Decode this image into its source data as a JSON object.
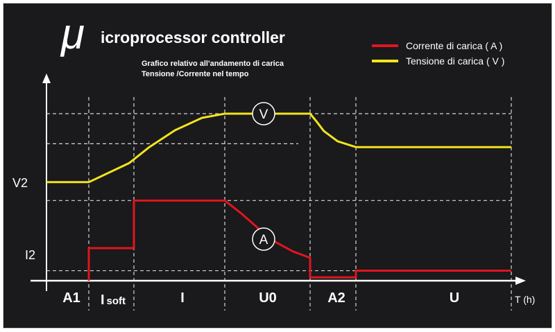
{
  "chart_data": {
    "type": "line",
    "title_mu": "μ",
    "title": "icroprocessor controller",
    "subtitle": [
      "Grafico relativo all'andamento di carica",
      "Tensione /Corrente nel tempo"
    ],
    "xlabel": "T (h)",
    "ylabel_ticks": {
      "v2": "V2",
      "i2": "I2"
    },
    "phases": [
      "A1",
      "Isoft",
      "I",
      "U0",
      "A2",
      "U"
    ],
    "grid": true,
    "legend_position": "top-right",
    "series": [
      {
        "name": "Corrente di carica ( A )",
        "marker_label": "A",
        "color": "#e0151f",
        "points": [
          [
            1,
            0
          ],
          [
            1,
            19.5
          ],
          [
            2,
            19.5
          ],
          [
            2,
            48
          ],
          [
            3,
            48
          ],
          [
            3.2,
            40
          ],
          [
            3.4,
            31
          ],
          [
            3.6,
            23
          ],
          [
            3.8,
            17.5
          ],
          [
            4,
            13.7
          ],
          [
            4,
            2
          ],
          [
            5,
            2
          ],
          [
            5,
            6
          ],
          [
            6,
            6
          ]
        ]
      },
      {
        "name": "Tensione di carica ( V )",
        "marker_label": "V",
        "color": "#f2e41c",
        "points": [
          [
            0,
            59
          ],
          [
            1,
            59
          ],
          [
            1.9,
            70.5
          ],
          [
            2.17,
            80
          ],
          [
            2.45,
            90
          ],
          [
            2.75,
            97.5
          ],
          [
            3,
            100
          ],
          [
            4,
            100
          ],
          [
            4.15,
            95
          ],
          [
            4.3,
            89.6
          ],
          [
            4.6,
            83.5
          ],
          [
            5,
            80
          ],
          [
            6,
            80
          ]
        ]
      }
    ]
  }
}
